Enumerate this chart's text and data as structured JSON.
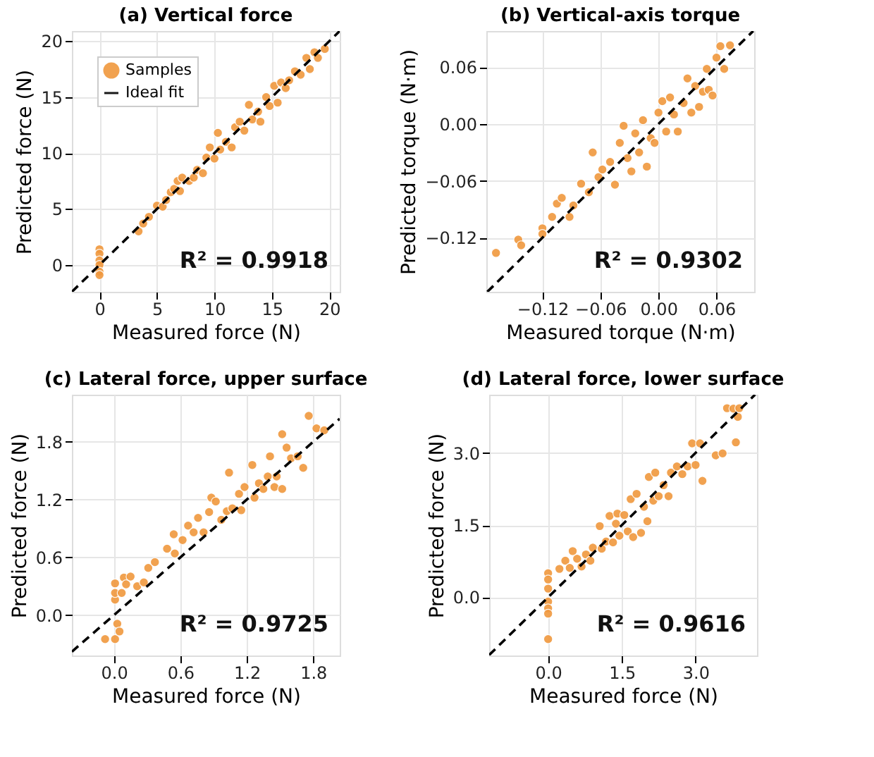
{
  "chart_data": [
    {
      "type": "scatter",
      "title": "(a) Vertical force",
      "xlabel": "Measured force (N)",
      "ylabel": "Predicted force (N)",
      "xlim": [
        -2.4,
        20.9
      ],
      "ylim": [
        -2.4,
        20.9
      ],
      "xticks": [
        0,
        5,
        10,
        15,
        20
      ],
      "yticks": [
        0,
        5,
        10,
        15,
        20
      ],
      "grid": true,
      "legend": "top left",
      "annotations": [
        "R² = 0.9918"
      ],
      "series": [
        {
          "name": "Samples",
          "marker": "circle",
          "color": "#f0983e",
          "x": [
            0,
            0,
            0,
            0,
            0,
            0,
            3.4,
            3.8,
            4.3,
            5.0,
            5.5,
            5.8,
            6.2,
            6.5,
            6.8,
            7.0,
            7.2,
            7.8,
            8.2,
            8.5,
            9.0,
            9.3,
            9.6,
            10.0,
            10.3,
            10.5,
            11.0,
            11.5,
            11.8,
            12.2,
            12.6,
            13.0,
            13.3,
            13.8,
            14.0,
            14.5,
            14.8,
            15.2,
            15.5,
            15.8,
            16.2,
            16.5,
            17.0,
            17.5,
            18.0,
            18.3,
            18.7,
            19.0,
            19.6
          ],
          "values": [
            1.4,
            1.0,
            0.4,
            0,
            -0.6,
            -0.9,
            3.0,
            3.7,
            4.3,
            5.3,
            5.2,
            5.8,
            6.5,
            6.8,
            7.5,
            6.6,
            7.8,
            7.5,
            7.8,
            8.5,
            8.2,
            9.6,
            10.5,
            9.5,
            11.8,
            10.3,
            11.0,
            10.5,
            12.3,
            12.8,
            12.0,
            14.3,
            13.0,
            13.7,
            12.8,
            15.0,
            14.2,
            16.0,
            14.5,
            16.3,
            15.8,
            16.5,
            17.3,
            17.0,
            18.5,
            17.5,
            19.0,
            18.5,
            19.3
          ]
        },
        {
          "name": "Ideal fit",
          "type": "line",
          "color": "#000000",
          "line_style": "dashed",
          "x": [
            -2.4,
            20.9
          ],
          "values": [
            -2.4,
            20.9
          ]
        }
      ]
    },
    {
      "type": "scatter",
      "title": "(b) Vertical-axis torque",
      "xlabel": "Measured torque (N·m)",
      "ylabel": "Predicted torque (N·m)",
      "xlim": [
        -0.178,
        0.099
      ],
      "ylim": [
        -0.177,
        0.098
      ],
      "xticks": [
        {
          "value": -0.12,
          "label": "−0.12"
        },
        {
          "value": -0.06,
          "label": "−0.06"
        },
        {
          "value": 0,
          "label": "0.00"
        },
        {
          "value": 0.06,
          "label": "0.06"
        }
      ],
      "yticks": [
        {
          "value": -0.12,
          "label": "−0.12"
        },
        {
          "value": -0.06,
          "label": "−0.06"
        },
        {
          "value": 0,
          "label": "0.00"
        },
        {
          "value": 0.06,
          "label": "0.06"
        }
      ],
      "grid": true,
      "annotations": [
        "R² = 0.9302"
      ],
      "series": [
        {
          "marker": "circle",
          "color": "#f0983e",
          "x": [
            -0.168,
            -0.145,
            -0.142,
            -0.12,
            -0.12,
            -0.11,
            -0.105,
            -0.1,
            -0.092,
            -0.088,
            -0.08,
            -0.072,
            -0.068,
            -0.062,
            -0.058,
            -0.05,
            -0.045,
            -0.04,
            -0.036,
            -0.032,
            -0.028,
            -0.024,
            -0.02,
            -0.016,
            -0.012,
            -0.008,
            -0.004,
            0.0,
            0.004,
            0.008,
            0.012,
            0.016,
            0.02,
            0.026,
            0.03,
            0.034,
            0.038,
            0.042,
            0.046,
            0.05,
            0.052,
            0.056,
            0.06,
            0.064,
            0.068,
            0.074
          ],
          "values": [
            -0.136,
            -0.122,
            -0.128,
            -0.11,
            -0.116,
            -0.098,
            -0.084,
            -0.078,
            -0.098,
            -0.086,
            -0.063,
            -0.072,
            -0.03,
            -0.056,
            -0.048,
            -0.04,
            -0.064,
            -0.02,
            -0.002,
            -0.036,
            -0.05,
            -0.01,
            -0.03,
            0.004,
            -0.045,
            -0.015,
            -0.02,
            0.012,
            0.024,
            -0.008,
            0.028,
            0.01,
            -0.008,
            0.022,
            0.048,
            0.012,
            0.04,
            0.018,
            0.034,
            0.058,
            0.036,
            0.03,
            0.07,
            0.082,
            0.058,
            0.083
          ]
        },
        {
          "type": "line",
          "color": "#000000",
          "line_style": "dashed",
          "x": [
            -0.177,
            0.098
          ],
          "values": [
            -0.177,
            0.098
          ]
        }
      ]
    },
    {
      "type": "scatter",
      "title": "(c) Lateral force, upper surface",
      "xlabel": "Measured force (N)",
      "ylabel": "Predicted force (N)",
      "xlim": [
        -0.38,
        2.04
      ],
      "ylim": [
        -0.42,
        2.29
      ],
      "xticks": [
        {
          "value": 0,
          "label": "0.0"
        },
        0.6,
        1.2,
        1.8
      ],
      "yticks": [
        {
          "value": 0,
          "label": "0.0"
        },
        0.6,
        1.2,
        1.8
      ],
      "grid": true,
      "annotations": [
        "R² = 0.9725"
      ],
      "series": [
        {
          "marker": "circle",
          "color": "#f0983e",
          "x": [
            -0.08,
            0.01,
            0.01,
            0.01,
            0.01,
            0.03,
            0.05,
            0.07,
            0.09,
            0.11,
            0.15,
            0.21,
            0.27,
            0.31,
            0.37,
            0.48,
            0.54,
            0.55,
            0.62,
            0.67,
            0.72,
            0.76,
            0.81,
            0.86,
            0.88,
            0.92,
            0.97,
            1.02,
            1.04,
            1.07,
            1.13,
            1.15,
            1.18,
            1.25,
            1.27,
            1.31,
            1.35,
            1.39,
            1.41,
            1.45,
            1.47,
            1.52,
            1.52,
            1.56,
            1.6,
            1.66,
            1.71,
            1.76,
            1.83,
            1.9
          ],
          "values": [
            -0.25,
            -0.25,
            0.16,
            0.23,
            0.33,
            -0.09,
            -0.17,
            0.23,
            0.39,
            0.32,
            0.4,
            0.3,
            0.34,
            0.49,
            0.55,
            0.69,
            0.84,
            0.64,
            0.78,
            0.93,
            0.86,
            1.01,
            0.86,
            1.07,
            1.22,
            1.18,
            0.99,
            1.08,
            1.48,
            1.11,
            1.26,
            1.09,
            1.33,
            1.56,
            1.22,
            1.37,
            1.31,
            1.44,
            1.65,
            1.33,
            1.44,
            1.88,
            1.31,
            1.74,
            1.63,
            1.65,
            1.53,
            2.07,
            1.94,
            1.92
          ]
        },
        {
          "type": "line",
          "color": "#000000",
          "line_style": "dashed",
          "x": [
            -0.38,
            2.04
          ],
          "values": [
            -0.38,
            2.04
          ]
        }
      ]
    },
    {
      "type": "scatter",
      "title": "(d) Lateral force, lower surface",
      "xlabel": "Measured force (N)",
      "ylabel": "Predicted force (N)",
      "xlim": [
        -1.2,
        4.25
      ],
      "ylim": [
        -1.21,
        4.21
      ],
      "xticks": [
        {
          "value": 0,
          "label": "0.0"
        },
        1.5,
        {
          "value": 3,
          "label": "3.0"
        }
      ],
      "yticks": [
        {
          "value": 0,
          "label": "0.0"
        },
        1.5,
        {
          "value": 3,
          "label": "3.0"
        }
      ],
      "grid": true,
      "annotations": [
        "R² = 0.9616"
      ],
      "series": [
        {
          "marker": "circle",
          "color": "#f0983e",
          "x": [
            0,
            0,
            0,
            0,
            0,
            0,
            0,
            0.23,
            0.35,
            0.44,
            0.5,
            0.59,
            0.68,
            0.77,
            0.86,
            0.91,
            1.05,
            1.09,
            1.18,
            1.25,
            1.32,
            1.38,
            1.41,
            1.45,
            1.55,
            1.62,
            1.68,
            1.73,
            1.8,
            1.89,
            1.95,
            2.02,
            2.05,
            2.14,
            2.18,
            2.25,
            2.35,
            2.45,
            2.5,
            2.62,
            2.73,
            2.84,
            2.93,
            3.0,
            3.09,
            3.14,
            3.41,
            3.55,
            3.64,
            3.77,
            3.82,
            3.86,
            3.89
          ],
          "values": [
            0.5,
            0.37,
            0.18,
            -0.09,
            -0.23,
            -0.34,
            -0.87,
            0.59,
            0.76,
            0.61,
            0.96,
            0.8,
            0.64,
            0.89,
            0.76,
            1.03,
            1.48,
            1.01,
            1.16,
            1.69,
            1.14,
            1.53,
            1.74,
            1.28,
            1.71,
            1.37,
            2.04,
            1.25,
            2.15,
            1.34,
            1.88,
            1.58,
            2.5,
            2.01,
            2.59,
            2.1,
            2.33,
            2.1,
            2.59,
            2.72,
            2.56,
            2.72,
            3.2,
            2.75,
            3.2,
            2.42,
            2.95,
            2.99,
            3.93,
            3.92,
            3.22,
            3.75,
            3.93
          ]
        },
        {
          "type": "line",
          "color": "#000000",
          "line_style": "dashed",
          "x": [
            -1.2,
            4.21
          ],
          "values": [
            -1.2,
            4.21
          ]
        }
      ]
    }
  ]
}
